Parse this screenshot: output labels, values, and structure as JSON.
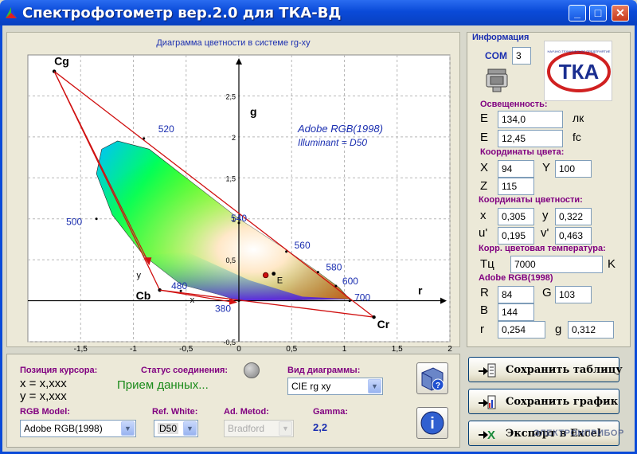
{
  "window": {
    "title": "Спектрофотометр вер.2.0 для ТКА-ВД",
    "minimize": "_",
    "maximize": "□",
    "close": "✕"
  },
  "chart": {
    "title": "Диаграмма цветности в системе rg-xy",
    "annotation_line1": "Adobe RGB(1998)",
    "annotation_line2": "Illuminant = D50"
  },
  "chart_data": {
    "type": "scatter",
    "xlabel": "r",
    "ylabel": "g",
    "xlim": [
      -2,
      2
    ],
    "ylim": [
      -0.5,
      3
    ],
    "x_ticks": [
      "-1,5",
      "-1",
      "-0,5",
      "0",
      "0,5",
      "1",
      "1,5",
      "2"
    ],
    "y_ticks": [
      "-0,5",
      "0,5",
      "1",
      "1,5",
      "2",
      "2,5"
    ],
    "primaries": [
      {
        "name": "Cg",
        "r": -1.75,
        "g": 2.8
      },
      {
        "name": "Cb",
        "r": -0.75,
        "g": 0.13
      },
      {
        "name": "Cr",
        "r": 1.28,
        "g": -0.2
      }
    ],
    "axis_labels_xy": [
      "x",
      "y"
    ],
    "locus_labels": [
      {
        "name": "380",
        "r": 0.0,
        "g": 0.0
      },
      {
        "name": "480",
        "r": -0.55,
        "g": 0.12
      },
      {
        "name": "500",
        "r": -1.35,
        "g": 1.0
      },
      {
        "name": "520",
        "r": -0.9,
        "g": 1.98
      },
      {
        "name": "540",
        "r": 0.0,
        "g": 0.95
      },
      {
        "name": "560",
        "r": 0.45,
        "g": 0.6
      },
      {
        "name": "580",
        "r": 0.75,
        "g": 0.35
      },
      {
        "name": "600",
        "r": 0.92,
        "g": 0.18
      },
      {
        "name": "700",
        "r": 1.05,
        "g": 0.0
      }
    ],
    "white_point": {
      "name": "E",
      "r": 0.33,
      "g": 0.33
    },
    "measured_point": {
      "r": 0.254,
      "g": 0.312
    },
    "grid": true
  },
  "info": {
    "title": "Информация",
    "com_label": "COM",
    "com_value": "3",
    "illum_label": "Освещенность:",
    "e_label": "E",
    "e_lux": "134,0",
    "lux_unit": "лк",
    "e_fc": "12,45",
    "fc_unit": "fc",
    "color_coord_label": "Координаты цвета:",
    "X_label": "X",
    "X": "94",
    "Y_label": "Y",
    "Y": "100",
    "Z_label": "Z",
    "Z": "115",
    "chroma_label": "Координаты цветности:",
    "x_label": "x",
    "x": "0,305",
    "y_label": "y",
    "y": "0,322",
    "u_label": "u'",
    "u": "0,195",
    "v_label": "v'",
    "v": "0,463",
    "cct_label": "Корр. цветовая температура:",
    "tc_label": "Tц",
    "tc": "7000",
    "k_unit": "K",
    "rgb_label": "Adobe RGB(1998)",
    "R_label": "R",
    "R": "84",
    "G_label": "G",
    "G": "103",
    "B_label": "B",
    "B": "144",
    "r_label": "r",
    "r": "0,254",
    "g_label": "g",
    "g": "0,312",
    "logo_text": "ТКА"
  },
  "bottom": {
    "cursor_label": "Позиция курсора:",
    "cursor_x": "x = x,xxx",
    "cursor_y": "y = x,xxx",
    "status_label": "Статус соединения:",
    "status_text": "Прием данных...",
    "diagram_label": "Вид диаграммы:",
    "diagram_value": "CIE rg xy",
    "rgb_model_label": "RGB Model:",
    "rgb_model_value": "Adobe RGB(1998)",
    "ref_white_label": "Ref. White:",
    "ref_white_value": "D50",
    "ad_method_label": "Ad. Metod:",
    "ad_method_value": "Bradford",
    "gamma_label": "Gamma:",
    "gamma_value": "2,2"
  },
  "buttons": {
    "save_table": "Сохранить таблицу",
    "save_chart": "Сохранить график",
    "export_excel": "Экспорт в Excel"
  },
  "watermark": "ЭЛЕКТРОНПРИБОР",
  "colors": {
    "title_blue": "#0a4ad8",
    "label_purple": "#800080",
    "label_blue": "#1a2eb0",
    "status_green": "#1a8a1a",
    "primary_red": "#d01010"
  }
}
